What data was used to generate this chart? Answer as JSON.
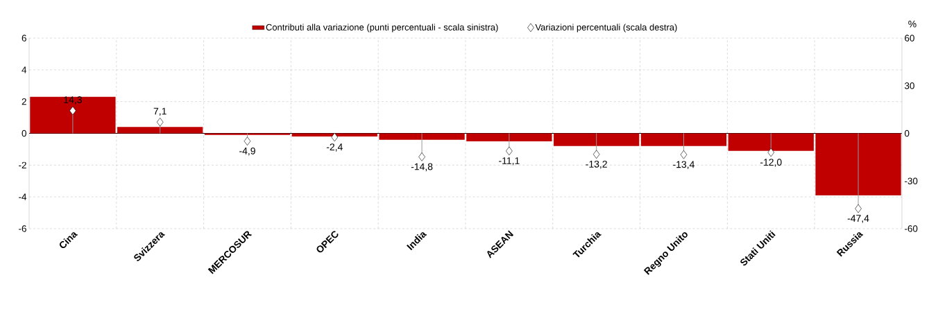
{
  "chart_data": {
    "type": "bar",
    "categories": [
      "Cina",
      "Svizzera",
      "MERCOSUR",
      "OPEC",
      "India",
      "ASEAN",
      "Turchia",
      "Regno Unito",
      "Stati Uniti",
      "Russia"
    ],
    "series": [
      {
        "name": "Contributi alla variazione (punti percentuali - scala sinistra)",
        "color": "#c00000",
        "values": [
          2.3,
          0.4,
          -0.1,
          -0.2,
          -0.4,
          -0.5,
          -0.8,
          -0.8,
          -1.1,
          -3.9
        ]
      },
      {
        "name": "Variazioni percentuali (scala destra)",
        "type": "lollipop",
        "axis": "y2",
        "color": "#ffffff",
        "marker": "diamond",
        "values": [
          14.3,
          7.1,
          -4.9,
          -2.4,
          -14.8,
          -11.1,
          -13.2,
          -13.4,
          -12.0,
          -47.4
        ],
        "value_labels": [
          "14,3",
          "7,1",
          "-4,9",
          "-2,4",
          "-14,8",
          "-11,1",
          "-13,2",
          "-13,4",
          "-12,0",
          "-47,4"
        ]
      }
    ],
    "ylim": [
      -6,
      6
    ],
    "yticks": [
      -6,
      -4,
      -2,
      0,
      2,
      4,
      6
    ],
    "y2lim": [
      -60,
      60
    ],
    "y2ticks": [
      -60,
      -30,
      0,
      30,
      60
    ],
    "y2label": "%",
    "grid": true,
    "legend": "top"
  }
}
